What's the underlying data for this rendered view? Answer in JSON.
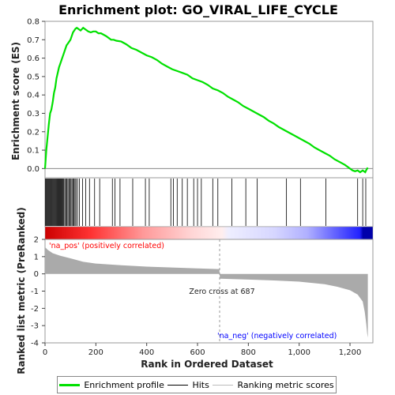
{
  "chart_data": {
    "type": "line",
    "title": "Enrichment plot: GO_VIRAL_LIFE_CYCLE",
    "es_panel": {
      "ylabel": "Enrichment score (ES)",
      "ylim": [
        -0.05,
        0.8
      ],
      "yticks": [
        "0.0",
        "0.1",
        "0.2",
        "0.3",
        "0.4",
        "0.5",
        "0.6",
        "0.7",
        "0.8"
      ],
      "series": [
        {
          "name": "Enrichment profile",
          "color": "#00e000",
          "x": [
            0,
            5,
            10,
            15,
            20,
            25,
            30,
            35,
            40,
            45,
            50,
            55,
            60,
            65,
            70,
            75,
            80,
            85,
            90,
            95,
            100,
            105,
            110,
            115,
            120,
            125,
            130,
            135,
            140,
            150,
            160,
            170,
            180,
            190,
            200,
            210,
            220,
            240,
            260,
            270,
            280,
            300,
            320,
            340,
            360,
            380,
            400,
            420,
            440,
            460,
            480,
            500,
            520,
            540,
            560,
            580,
            600,
            620,
            640,
            660,
            680,
            700,
            720,
            740,
            760,
            780,
            800,
            820,
            840,
            860,
            880,
            900,
            920,
            940,
            960,
            980,
            1000,
            1020,
            1040,
            1060,
            1080,
            1100,
            1120,
            1140,
            1160,
            1180,
            1200,
            1210,
            1220,
            1230,
            1240,
            1250,
            1260,
            1265,
            1270
          ],
          "y": [
            0.0,
            0.1,
            0.17,
            0.24,
            0.3,
            0.32,
            0.36,
            0.41,
            0.44,
            0.49,
            0.52,
            0.55,
            0.57,
            0.59,
            0.61,
            0.63,
            0.65,
            0.67,
            0.68,
            0.69,
            0.7,
            0.72,
            0.74,
            0.75,
            0.76,
            0.765,
            0.76,
            0.755,
            0.75,
            0.765,
            0.755,
            0.745,
            0.74,
            0.745,
            0.745,
            0.735,
            0.735,
            0.72,
            0.7,
            0.7,
            0.695,
            0.69,
            0.675,
            0.655,
            0.645,
            0.63,
            0.615,
            0.605,
            0.59,
            0.57,
            0.555,
            0.54,
            0.53,
            0.52,
            0.51,
            0.49,
            0.48,
            0.47,
            0.455,
            0.435,
            0.425,
            0.41,
            0.39,
            0.375,
            0.36,
            0.34,
            0.325,
            0.31,
            0.295,
            0.28,
            0.26,
            0.245,
            0.225,
            0.21,
            0.195,
            0.18,
            0.165,
            0.15,
            0.135,
            0.115,
            0.1,
            0.085,
            0.07,
            0.05,
            0.035,
            0.02,
            0.0,
            -0.01,
            -0.015,
            -0.01,
            -0.02,
            -0.01,
            -0.02,
            -0.005,
            0.005
          ]
        }
      ]
    },
    "hits_panel": {
      "legend_label": "Hits",
      "positions": [
        2,
        5,
        8,
        11,
        14,
        17,
        20,
        23,
        26,
        29,
        32,
        35,
        38,
        41,
        44,
        47,
        50,
        53,
        56,
        59,
        62,
        65,
        68,
        71,
        74,
        78,
        82,
        86,
        90,
        94,
        98,
        102,
        106,
        110,
        114,
        118,
        122,
        128,
        135,
        148,
        160,
        175,
        195,
        215,
        265,
        275,
        295,
        345,
        395,
        410,
        495,
        505,
        520,
        540,
        560,
        585,
        600,
        615,
        660,
        680,
        735,
        790,
        835,
        950,
        1005,
        1105,
        1230,
        1250,
        1262
      ]
    },
    "metric_panel": {
      "ylabel": "Ranked list metric (PreRanked)",
      "ylim": [
        -4,
        2
      ],
      "yticks": [
        "2",
        "1",
        "0",
        "-1",
        "-2",
        "-3",
        "-4"
      ],
      "legend_label": "Ranking metric scores",
      "zero_cross_label": "Zero cross at 687",
      "zero_cross": 687,
      "pos_label": "'na_pos' (positively correlated)",
      "neg_label": "'na_neg' (negatively correlated)",
      "pos_color": "#ff0000",
      "neg_color": "#0000ff",
      "x": [
        0,
        10,
        30,
        60,
        100,
        150,
        200,
        300,
        400,
        500,
        600,
        686,
        688,
        800,
        900,
        1000,
        1100,
        1150,
        1200,
        1230,
        1250,
        1258,
        1264,
        1268,
        1270
      ],
      "y": [
        1.55,
        1.4,
        1.2,
        1.05,
        0.9,
        0.7,
        0.6,
        0.5,
        0.42,
        0.37,
        0.32,
        0.28,
        -0.28,
        -0.33,
        -0.38,
        -0.45,
        -0.6,
        -0.75,
        -0.95,
        -1.2,
        -1.6,
        -2.2,
        -2.9,
        -3.5,
        -3.7
      ]
    },
    "xaxis": {
      "xlabel": "Rank in Ordered Dataset",
      "xlim": [
        0,
        1290
      ],
      "xticks": [
        0,
        200,
        400,
        600,
        800,
        1000,
        1200
      ],
      "xtick_labels": [
        "0",
        "200",
        "400",
        "600",
        "800",
        "1,000",
        "1,200"
      ]
    },
    "legend": [
      {
        "label": "Enrichment profile",
        "color": "#00e000"
      },
      {
        "label": "Hits",
        "color": "#000000"
      },
      {
        "label": "Ranking metric scores",
        "color": "#bbbbbb"
      }
    ]
  }
}
